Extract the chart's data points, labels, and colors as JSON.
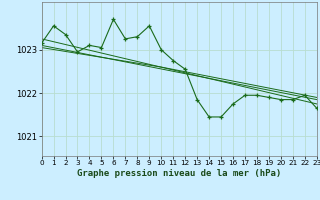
{
  "title": "Graphe pression niveau de la mer (hPa)",
  "background_color": "#cceeff",
  "grid_color": "#b8ddd0",
  "line_color": "#1a6b1a",
  "xlim": [
    0,
    23
  ],
  "ylim": [
    1020.55,
    1024.1
  ],
  "yticks": [
    1021,
    1022,
    1023
  ],
  "xticks": [
    0,
    1,
    2,
    3,
    4,
    5,
    6,
    7,
    8,
    9,
    10,
    11,
    12,
    13,
    14,
    15,
    16,
    17,
    18,
    19,
    20,
    21,
    22,
    23
  ],
  "series_main": [
    [
      0,
      1023.15
    ],
    [
      1,
      1023.55
    ],
    [
      2,
      1023.35
    ],
    [
      3,
      1022.95
    ],
    [
      4,
      1023.1
    ],
    [
      5,
      1023.05
    ],
    [
      6,
      1023.7
    ],
    [
      7,
      1023.25
    ],
    [
      8,
      1023.3
    ],
    [
      9,
      1023.55
    ],
    [
      10,
      1023.0
    ],
    [
      11,
      1022.75
    ],
    [
      12,
      1022.55
    ],
    [
      13,
      1021.85
    ],
    [
      14,
      1021.45
    ],
    [
      15,
      1021.45
    ],
    [
      16,
      1021.75
    ],
    [
      17,
      1021.95
    ],
    [
      18,
      1021.95
    ],
    [
      19,
      1021.9
    ],
    [
      20,
      1021.85
    ],
    [
      21,
      1021.85
    ],
    [
      22,
      1021.95
    ],
    [
      23,
      1021.65
    ]
  ],
  "series_trend1": [
    [
      0,
      1023.25
    ],
    [
      23,
      1021.75
    ]
  ],
  "series_trend2": [
    [
      0,
      1023.1
    ],
    [
      23,
      1021.85
    ]
  ],
  "series_trend3": [
    [
      0,
      1023.05
    ],
    [
      10,
      1022.6
    ],
    [
      23,
      1021.9
    ]
  ],
  "ylabel_fontsize": 6,
  "xlabel_fontsize": 6.5,
  "tick_fontsize": 5.2
}
